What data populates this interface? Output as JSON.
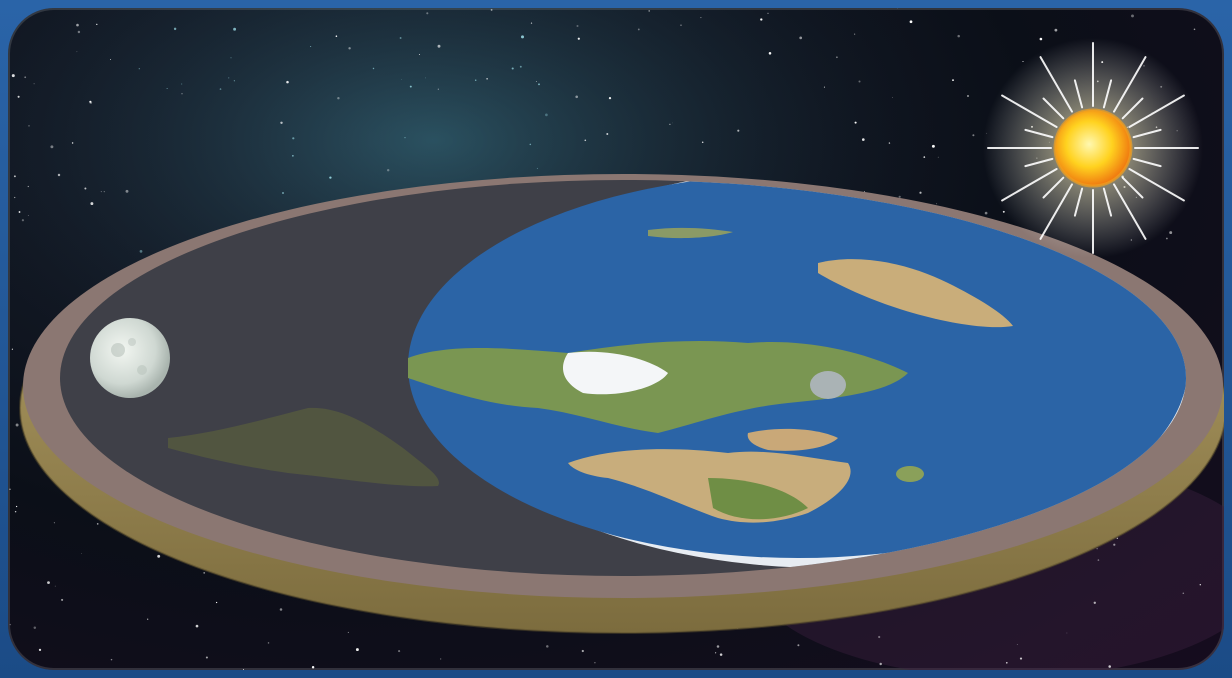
{
  "scene": {
    "background_color": "#0b0f18",
    "frame_color": "#1d4f8c",
    "day_ocean_color": "#2b64a6",
    "night_color": "#3f4048",
    "ice_wall_color": "#e7ecf2",
    "rim_color": "#8b7772",
    "soil_color": "#9c8a55",
    "sun_color": "#ffd21f",
    "moon_color": "#d8e0da",
    "objects": [
      "flat-earth-disc",
      "sun",
      "moon",
      "star-field",
      "ice-wall",
      "day-night-terminator"
    ]
  }
}
